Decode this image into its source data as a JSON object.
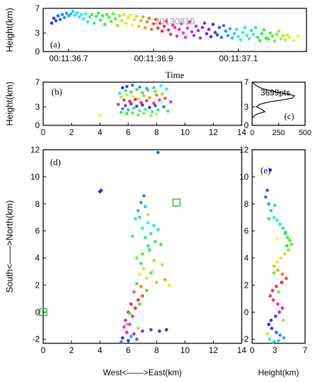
{
  "chart_data": [
    {
      "panel": "(a)",
      "type": "scatter",
      "xlabel": "Time",
      "ylabel": "Height(km)",
      "xticks": [
        "00:11:36.7",
        "00:11:36.9",
        "00:11:37.1"
      ],
      "xtick_values": [
        36.7,
        36.9,
        37.1
      ],
      "xlim": [
        36.64,
        37.26
      ],
      "yticks": [
        0,
        3,
        7
      ],
      "ylim": [
        0,
        7
      ],
      "annotation": "20130815",
      "color_by": "time",
      "points": [
        [
          36.66,
          4.6
        ],
        [
          36.665,
          5.4
        ],
        [
          36.67,
          5.0
        ],
        [
          36.675,
          5.8
        ],
        [
          36.68,
          5.2
        ],
        [
          36.685,
          6.0
        ],
        [
          36.69,
          5.5
        ],
        [
          36.695,
          6.2
        ],
        [
          36.7,
          5.8
        ],
        [
          36.705,
          6.1
        ],
        [
          36.71,
          6.5
        ],
        [
          36.715,
          5.9
        ],
        [
          36.72,
          6.3
        ],
        [
          36.725,
          5.6
        ],
        [
          36.73,
          6.0
        ],
        [
          36.735,
          5.3
        ],
        [
          36.74,
          6.1
        ],
        [
          36.745,
          4.8
        ],
        [
          36.75,
          5.6
        ],
        [
          36.755,
          6.0
        ],
        [
          36.76,
          4.6
        ],
        [
          36.765,
          5.7
        ],
        [
          36.77,
          6.2
        ],
        [
          36.775,
          5.1
        ],
        [
          36.78,
          5.8
        ],
        [
          36.785,
          4.4
        ],
        [
          36.79,
          6.0
        ],
        [
          36.795,
          5.5
        ],
        [
          36.8,
          4.9
        ],
        [
          36.805,
          6.1
        ],
        [
          36.81,
          5.3
        ],
        [
          36.815,
          4.2
        ],
        [
          36.82,
          5.8
        ],
        [
          36.825,
          5.0
        ],
        [
          36.83,
          6.0
        ],
        [
          36.835,
          4.6
        ],
        [
          36.84,
          5.5
        ],
        [
          36.845,
          5.9
        ],
        [
          36.85,
          4.3
        ],
        [
          36.855,
          5.2
        ],
        [
          36.86,
          5.7
        ],
        [
          36.865,
          4.1
        ],
        [
          36.87,
          5.0
        ],
        [
          36.875,
          5.6
        ],
        [
          36.88,
          3.9
        ],
        [
          36.885,
          4.8
        ],
        [
          36.89,
          5.4
        ],
        [
          36.895,
          3.6
        ],
        [
          36.9,
          4.5
        ],
        [
          36.905,
          5.2
        ],
        [
          36.91,
          3.8
        ],
        [
          36.915,
          4.6
        ],
        [
          36.92,
          3.3
        ],
        [
          36.925,
          4.1
        ],
        [
          36.93,
          4.9
        ],
        [
          36.935,
          3.5
        ],
        [
          36.94,
          2.8
        ],
        [
          36.945,
          4.3
        ],
        [
          36.95,
          3.9
        ],
        [
          36.955,
          2.5
        ],
        [
          36.96,
          3.6
        ],
        [
          36.965,
          4.5
        ],
        [
          36.97,
          3.0
        ],
        [
          36.975,
          2.3
        ],
        [
          36.98,
          3.8
        ],
        [
          36.985,
          4.8
        ],
        [
          36.99,
          3.2
        ],
        [
          36.995,
          2.6
        ],
        [
          37.0,
          4.1
        ],
        [
          37.005,
          3.4
        ],
        [
          37.01,
          2.2
        ],
        [
          37.015,
          3.9
        ],
        [
          37.02,
          4.6
        ],
        [
          37.025,
          2.9
        ],
        [
          37.03,
          3.6
        ],
        [
          37.035,
          2.4
        ],
        [
          37.04,
          4.4
        ],
        [
          37.045,
          3.1
        ],
        [
          37.05,
          2.7
        ],
        [
          37.055,
          3.9
        ],
        [
          37.06,
          2.3
        ],
        [
          37.065,
          4.2
        ],
        [
          37.07,
          3.3
        ],
        [
          37.075,
          2.6
        ],
        [
          37.08,
          3.7
        ],
        [
          37.085,
          2.2
        ],
        [
          37.09,
          2.9
        ],
        [
          37.095,
          3.6
        ],
        [
          37.1,
          2.4
        ],
        [
          37.105,
          1.9
        ],
        [
          37.11,
          3.1
        ],
        [
          37.115,
          3.9
        ],
        [
          37.12,
          2.6
        ],
        [
          37.125,
          2.1
        ],
        [
          37.13,
          3.4
        ],
        [
          37.135,
          2.8
        ],
        [
          37.14,
          3.9
        ],
        [
          37.145,
          2.3
        ],
        [
          37.15,
          1.8
        ],
        [
          37.155,
          2.9
        ],
        [
          37.16,
          3.5
        ],
        [
          37.165,
          2.2
        ],
        [
          37.17,
          2.0
        ],
        [
          37.175,
          3.0
        ],
        [
          37.18,
          2.5
        ],
        [
          37.185,
          1.7
        ],
        [
          37.19,
          2.8
        ],
        [
          37.195,
          3.3
        ],
        [
          37.2,
          2.1
        ],
        [
          37.205,
          2.6
        ],
        [
          37.21,
          1.9
        ],
        [
          37.215,
          2.7
        ],
        [
          37.22,
          2.3
        ],
        [
          37.23,
          1.8
        ],
        [
          37.24,
          2.5
        ]
      ]
    },
    {
      "panel": "(b)",
      "type": "scatter",
      "xlabel": "",
      "ylabel": "Height(km)",
      "xticks": [
        0,
        2,
        4,
        6,
        8,
        10,
        12,
        14
      ],
      "xlim": [
        0,
        14
      ],
      "yticks": [
        0,
        3,
        7
      ],
      "ylim": [
        0,
        7
      ],
      "color_by": "time",
      "points": [
        [
          5.6,
          6.1
        ],
        [
          5.9,
          6.3
        ],
        [
          6.3,
          6.5
        ],
        [
          6.8,
          6.2
        ],
        [
          7.3,
          6.0
        ],
        [
          7.8,
          6.1
        ],
        [
          8.3,
          6.4
        ],
        [
          8.7,
          5.9
        ],
        [
          5.4,
          5.2
        ],
        [
          5.8,
          5.6
        ],
        [
          6.2,
          5.4
        ],
        [
          6.6,
          5.8
        ],
        [
          7.0,
          5.3
        ],
        [
          7.4,
          5.7
        ],
        [
          7.9,
          5.5
        ],
        [
          8.4,
          5.1
        ],
        [
          5.5,
          4.6
        ],
        [
          5.9,
          4.9
        ],
        [
          6.3,
          4.7
        ],
        [
          6.7,
          4.3
        ],
        [
          7.1,
          4.8
        ],
        [
          7.5,
          4.5
        ],
        [
          8.0,
          4.9
        ],
        [
          8.6,
          4.4
        ],
        [
          5.7,
          4.1
        ],
        [
          6.1,
          3.9
        ],
        [
          6.5,
          4.2
        ],
        [
          6.9,
          3.7
        ],
        [
          7.3,
          4.0
        ],
        [
          7.8,
          3.6
        ],
        [
          8.2,
          4.1
        ],
        [
          9.0,
          3.8
        ],
        [
          5.3,
          3.4
        ],
        [
          5.8,
          3.2
        ],
        [
          6.2,
          3.5
        ],
        [
          6.6,
          3.1
        ],
        [
          7.0,
          3.3
        ],
        [
          7.5,
          2.9
        ],
        [
          7.9,
          3.2
        ],
        [
          8.5,
          3.0
        ],
        [
          5.6,
          2.7
        ],
        [
          6.0,
          2.5
        ],
        [
          6.4,
          2.8
        ],
        [
          6.8,
          2.4
        ],
        [
          7.2,
          2.6
        ],
        [
          7.7,
          2.2
        ],
        [
          8.1,
          2.5
        ],
        [
          8.8,
          2.3
        ],
        [
          5.5,
          2.1
        ],
        [
          5.9,
          1.9
        ],
        [
          6.3,
          2.0
        ],
        [
          6.7,
          1.7
        ],
        [
          7.1,
          1.9
        ],
        [
          7.6,
          1.6
        ],
        [
          8.0,
          1.8
        ],
        [
          4.0,
          1.6
        ]
      ]
    },
    {
      "panel": "(c)",
      "type": "line",
      "xlabel": "",
      "ylabel": "",
      "xticks": [
        0,
        250,
        500
      ],
      "xlim": [
        0,
        500
      ],
      "yticks": [
        0,
        3,
        7
      ],
      "ylim": [
        0,
        7
      ],
      "legend_text": "3699pts",
      "series": [
        {
          "x": [
            5,
            20,
            60,
            120,
            90,
            40,
            70,
            160,
            280,
            380,
            400,
            330,
            230,
            150,
            90,
            40,
            15,
            5
          ],
          "y": [
            1.2,
            1.6,
            1.9,
            2.2,
            2.6,
            3.0,
            3.4,
            3.8,
            4.1,
            4.4,
            4.8,
            5.1,
            5.4,
            5.7,
            6.0,
            6.4,
            6.8,
            7.0
          ]
        }
      ]
    },
    {
      "panel": "(d)",
      "type": "scatter",
      "xlabel": "West<——>East(km)",
      "ylabel": "South<——>North(km)",
      "xticks": [
        0,
        2,
        4,
        6,
        8,
        10,
        12,
        14
      ],
      "xlim": [
        0,
        14
      ],
      "yticks": [
        -2,
        0,
        2,
        4,
        6,
        8,
        10,
        12
      ],
      "ylim": [
        -2.3,
        12
      ],
      "color_by": "time",
      "markers": [
        [
          9.4,
          8.1
        ],
        [
          0.0,
          0.0
        ]
      ],
      "points": [
        [
          4.0,
          8.9
        ],
        [
          4.1,
          9.0
        ],
        [
          8.1,
          11.8
        ],
        [
          7.1,
          8.6
        ],
        [
          6.9,
          8.1
        ],
        [
          6.7,
          7.5
        ],
        [
          6.8,
          7.0
        ],
        [
          7.4,
          6.6
        ],
        [
          7.8,
          6.4
        ],
        [
          8.1,
          6.1
        ],
        [
          7.6,
          5.8
        ],
        [
          7.2,
          5.5
        ],
        [
          7.9,
          5.2
        ],
        [
          8.3,
          5.0
        ],
        [
          7.5,
          4.6
        ],
        [
          7.0,
          4.3
        ],
        [
          6.6,
          4.0
        ],
        [
          7.8,
          3.8
        ],
        [
          8.4,
          3.5
        ],
        [
          7.1,
          3.2
        ],
        [
          6.8,
          2.8
        ],
        [
          7.3,
          2.5
        ],
        [
          8.0,
          2.2
        ],
        [
          8.6,
          2.4
        ],
        [
          6.9,
          1.9
        ],
        [
          6.4,
          1.5
        ],
        [
          7.0,
          1.2
        ],
        [
          6.7,
          0.9
        ],
        [
          6.2,
          0.6
        ],
        [
          6.5,
          0.3
        ],
        [
          6.0,
          0.0
        ],
        [
          6.3,
          -0.3
        ],
        [
          5.8,
          -0.6
        ],
        [
          6.1,
          -0.9
        ],
        [
          5.7,
          -1.1
        ],
        [
          5.9,
          -1.5
        ],
        [
          6.4,
          -1.6
        ],
        [
          7.0,
          -1.4
        ],
        [
          7.6,
          -1.3
        ],
        [
          8.2,
          -1.4
        ],
        [
          8.7,
          -1.3
        ],
        [
          5.6,
          -1.9
        ],
        [
          6.0,
          -2.1
        ],
        [
          6.6,
          -2.0
        ],
        [
          5.5,
          -2.2
        ],
        [
          6.2,
          -1.8
        ],
        [
          7.2,
          7.8
        ],
        [
          6.5,
          6.9
        ],
        [
          7.0,
          6.2
        ],
        [
          6.3,
          5.6
        ],
        [
          7.4,
          4.9
        ],
        [
          6.9,
          3.6
        ],
        [
          7.6,
          2.9
        ],
        [
          6.6,
          2.1
        ],
        [
          7.3,
          1.6
        ],
        [
          6.8,
          0.6
        ],
        [
          6.1,
          -0.1
        ],
        [
          5.9,
          -0.9
        ],
        [
          6.7,
          -1.2
        ],
        [
          7.4,
          7.2
        ],
        [
          7.7,
          3.0
        ],
        [
          8.9,
          2.0
        ]
      ]
    },
    {
      "panel": "(e)",
      "type": "scatter",
      "xlabel": "Height(km)",
      "ylabel": "",
      "xticks": [
        0,
        3,
        7
      ],
      "xlim": [
        0,
        7
      ],
      "yticks": [
        -2,
        0,
        2,
        4,
        6,
        8,
        10,
        12
      ],
      "ylim": [
        -2.3,
        12
      ],
      "color_by": "time",
      "points": [
        [
          2.4,
          10.5
        ],
        [
          2.0,
          9.0
        ],
        [
          1.8,
          8.5
        ],
        [
          2.2,
          8.0
        ],
        [
          2.5,
          7.5
        ],
        [
          2.9,
          7.0
        ],
        [
          3.3,
          6.8
        ],
        [
          3.7,
          6.5
        ],
        [
          4.1,
          6.2
        ],
        [
          4.4,
          5.8
        ],
        [
          4.7,
          5.5
        ],
        [
          5.0,
          5.3
        ],
        [
          5.2,
          5.0
        ],
        [
          4.8,
          4.6
        ],
        [
          4.3,
          4.3
        ],
        [
          3.8,
          4.0
        ],
        [
          3.3,
          3.7
        ],
        [
          2.9,
          3.4
        ],
        [
          3.4,
          3.1
        ],
        [
          4.0,
          2.8
        ],
        [
          4.5,
          2.5
        ],
        [
          3.9,
          2.2
        ],
        [
          3.2,
          1.9
        ],
        [
          2.7,
          1.6
        ],
        [
          2.4,
          1.2
        ],
        [
          2.8,
          0.9
        ],
        [
          3.4,
          0.6
        ],
        [
          4.0,
          0.3
        ],
        [
          3.6,
          0.0
        ],
        [
          3.1,
          -0.3
        ],
        [
          2.5,
          -0.6
        ],
        [
          2.2,
          -0.9
        ],
        [
          2.6,
          -1.2
        ],
        [
          3.2,
          -1.5
        ],
        [
          3.7,
          -1.7
        ],
        [
          4.2,
          -1.9
        ],
        [
          3.5,
          -2.1
        ],
        [
          2.8,
          -2.2
        ],
        [
          2.3,
          -2.0
        ],
        [
          4.4,
          5.9
        ],
        [
          3.0,
          7.9
        ],
        [
          2.2,
          6.9
        ],
        [
          4.6,
          4.9
        ],
        [
          2.9,
          2.9
        ],
        [
          3.5,
          1.5
        ],
        [
          4.1,
          -0.6
        ],
        [
          2.0,
          -1.6
        ],
        [
          3.3,
          5.4
        ]
      ]
    }
  ]
}
